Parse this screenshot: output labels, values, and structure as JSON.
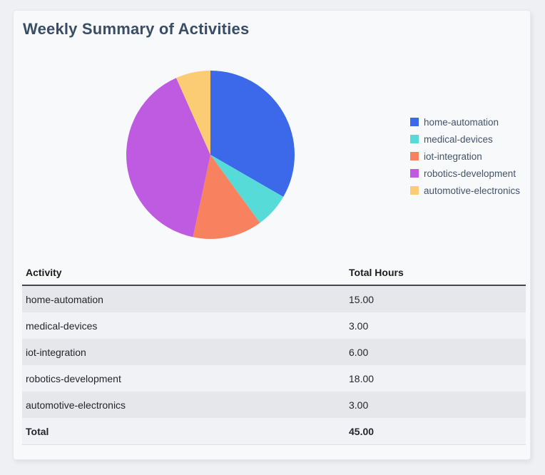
{
  "page": {
    "background_color": "#eef0f3"
  },
  "card": {
    "background_color": "#f8f9fa",
    "title": "Weekly Summary of Activities",
    "title_color": "#3a4d66"
  },
  "chart_data": {
    "type": "pie",
    "title": "Weekly Summary of Activities",
    "labels": [
      "home-automation",
      "medical-devices",
      "iot-integration",
      "robotics-development",
      "automotive-electronics"
    ],
    "values": [
      15,
      3,
      6,
      18,
      3
    ],
    "total": 45,
    "percentages": [
      33.33,
      6.67,
      13.33,
      40.0,
      6.67
    ],
    "colors": [
      "#3b69e9",
      "#57dbd8",
      "#f8825f",
      "#bf5be0",
      "#fbcc74"
    ],
    "start_angle": "top",
    "direction": "clockwise",
    "legend_position": "right",
    "legend_text_color": "#44546a"
  },
  "table": {
    "columns": [
      "Activity",
      "Total Hours"
    ],
    "rows": [
      [
        "home-automation",
        "15.00"
      ],
      [
        "medical-devices",
        "3.00"
      ],
      [
        "iot-integration",
        "6.00"
      ],
      [
        "robotics-development",
        "18.00"
      ],
      [
        "automotive-electronics",
        "3.00"
      ]
    ],
    "total_label": "Total",
    "total_value": "45.00"
  }
}
